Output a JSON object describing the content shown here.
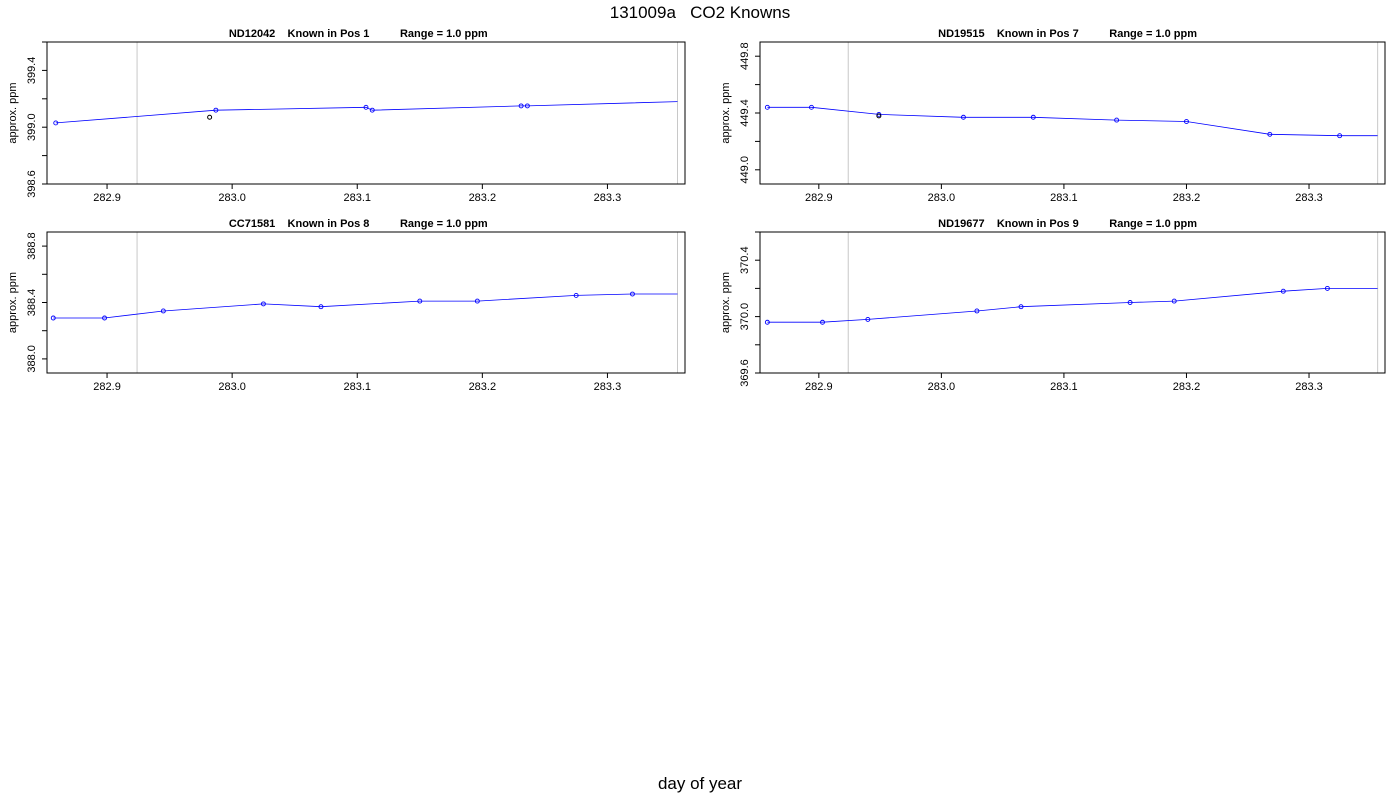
{
  "figure": {
    "title": "131009a   CO2 Knowns",
    "xlabel": "day of year"
  },
  "colors": {
    "series": "#0000ff",
    "raw_point": "#000000",
    "marker_line": "#c8c8c8",
    "axis": "#000000"
  },
  "chart_data": [
    {
      "type": "line",
      "title": "ND12042    Known in Pos 1          Range = 1.0 ppm",
      "ylabel": "approx. ppm",
      "xlim": [
        282.852,
        283.362
      ],
      "ylim": [
        398.6,
        399.6
      ],
      "xticks": [
        282.9,
        283.0,
        283.1,
        283.2,
        283.3
      ],
      "yticks": [
        398.6,
        399.0,
        399.4
      ],
      "vlines": [
        282.924,
        283.356
      ],
      "series": [
        {
          "x": [
            282.859,
            282.987,
            283.107,
            283.112,
            283.231,
            283.236,
            283.356
          ],
          "y": [
            399.03,
            399.12,
            399.14,
            399.12,
            399.15,
            399.15,
            399.18
          ]
        }
      ],
      "raw_points": [
        {
          "x": 282.982,
          "y": 399.07
        }
      ]
    },
    {
      "type": "line",
      "title": "ND19515    Known in Pos 7          Range = 1.0 ppm",
      "ylabel": "approx. ppm",
      "xlim": [
        282.852,
        283.362
      ],
      "ylim": [
        448.9,
        449.9
      ],
      "xticks": [
        282.9,
        283.0,
        283.1,
        283.2,
        283.3
      ],
      "yticks": [
        449.0,
        449.4,
        449.8
      ],
      "vlines": [
        282.924,
        283.356
      ],
      "series": [
        {
          "x": [
            282.858,
            282.894,
            282.949,
            283.018,
            283.075,
            283.143,
            283.2,
            283.268,
            283.325,
            283.356
          ],
          "y": [
            449.44,
            449.44,
            449.39,
            449.37,
            449.37,
            449.35,
            449.34,
            449.25,
            449.24,
            449.24
          ]
        }
      ],
      "raw_points": [
        {
          "x": 282.949,
          "y": 449.38
        }
      ]
    },
    {
      "type": "line",
      "title": "CC71581    Known in Pos 8          Range = 1.0 ppm",
      "ylabel": "approx. ppm",
      "xlim": [
        282.852,
        283.362
      ],
      "ylim": [
        387.9,
        388.9
      ],
      "xticks": [
        282.9,
        283.0,
        283.1,
        283.2,
        283.3
      ],
      "yticks": [
        388.0,
        388.4,
        388.8
      ],
      "vlines": [
        282.924,
        283.356
      ],
      "series": [
        {
          "x": [
            282.857,
            282.898,
            282.945,
            283.025,
            283.071,
            283.15,
            283.196,
            283.275,
            283.32,
            283.356
          ],
          "y": [
            388.29,
            388.29,
            388.34,
            388.39,
            388.37,
            388.41,
            388.41,
            388.45,
            388.46,
            388.46
          ]
        }
      ],
      "raw_points": []
    },
    {
      "type": "line",
      "title": "ND19677    Known in Pos 9          Range = 1.0 ppm",
      "ylabel": "approx. ppm",
      "xlim": [
        282.852,
        283.362
      ],
      "ylim": [
        369.6,
        370.6
      ],
      "xticks": [
        282.9,
        283.0,
        283.1,
        283.2,
        283.3
      ],
      "yticks": [
        369.6,
        370.0,
        370.4
      ],
      "vlines": [
        282.924,
        283.356
      ],
      "series": [
        {
          "x": [
            282.858,
            282.903,
            282.94,
            283.029,
            283.065,
            283.154,
            283.19,
            283.279,
            283.315,
            283.356
          ],
          "y": [
            369.96,
            369.96,
            369.98,
            370.04,
            370.07,
            370.1,
            370.11,
            370.18,
            370.2,
            370.2
          ]
        }
      ],
      "raw_points": []
    }
  ]
}
